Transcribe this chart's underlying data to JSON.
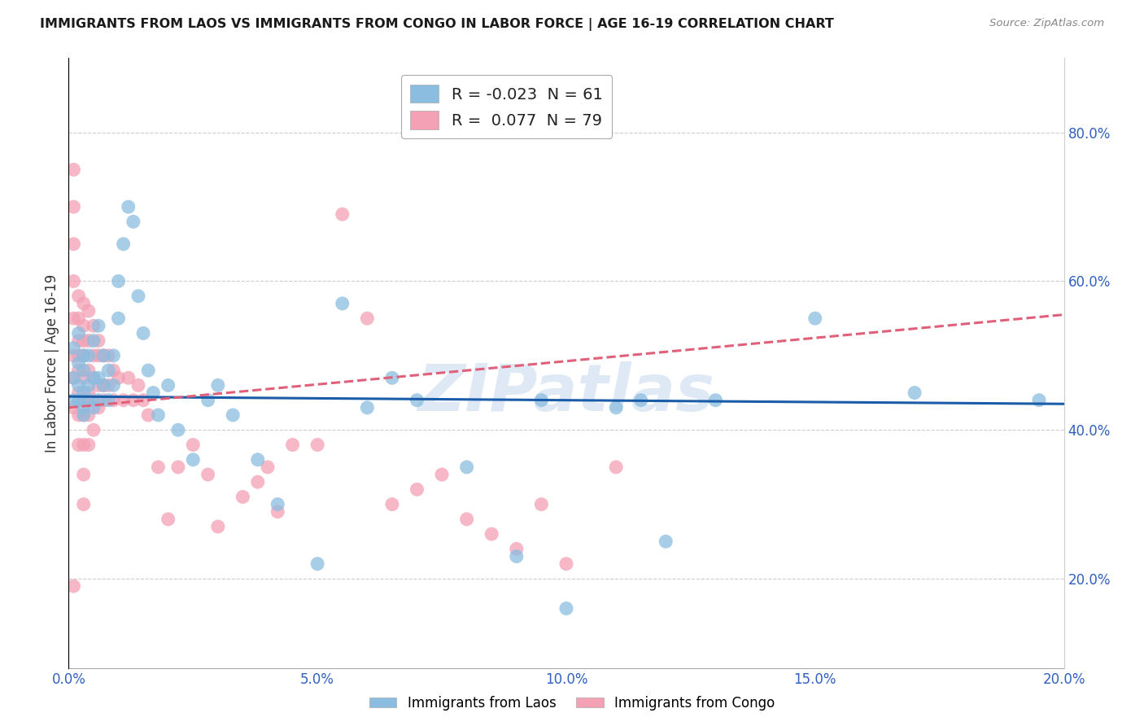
{
  "title": "IMMIGRANTS FROM LAOS VS IMMIGRANTS FROM CONGO IN LABOR FORCE | AGE 16-19 CORRELATION CHART",
  "source": "Source: ZipAtlas.com",
  "ylabel": "In Labor Force | Age 16-19",
  "xlim": [
    0.0,
    0.2
  ],
  "ylim": [
    0.08,
    0.9
  ],
  "right_yticks": [
    0.2,
    0.4,
    0.6,
    0.8
  ],
  "right_yticklabels": [
    "20.0%",
    "40.0%",
    "60.0%",
    "80.0%"
  ],
  "xticks": [
    0.0,
    0.05,
    0.1,
    0.15,
    0.2
  ],
  "xticklabels": [
    "0.0%",
    "5.0%",
    "10.0%",
    "15.0%",
    "20.0%"
  ],
  "laos_R": -0.023,
  "laos_N": 61,
  "congo_R": 0.077,
  "congo_N": 79,
  "laos_color": "#8bbde0",
  "congo_color": "#f4a0b5",
  "laos_line_color": "#1a5ca8",
  "congo_line_color": "#e0607a",
  "watermark": "ZIPatlas",
  "laos_line_y0": 0.445,
  "laos_line_y1": 0.435,
  "congo_line_y0": 0.43,
  "congo_line_y1": 0.555,
  "laos_x": [
    0.001,
    0.001,
    0.001,
    0.002,
    0.002,
    0.002,
    0.002,
    0.003,
    0.003,
    0.003,
    0.003,
    0.003,
    0.004,
    0.004,
    0.004,
    0.005,
    0.005,
    0.005,
    0.006,
    0.006,
    0.006,
    0.007,
    0.007,
    0.008,
    0.008,
    0.009,
    0.009,
    0.01,
    0.01,
    0.011,
    0.012,
    0.013,
    0.014,
    0.015,
    0.016,
    0.017,
    0.018,
    0.02,
    0.022,
    0.025,
    0.028,
    0.03,
    0.033,
    0.038,
    0.042,
    0.05,
    0.055,
    0.06,
    0.065,
    0.07,
    0.08,
    0.09,
    0.095,
    0.1,
    0.11,
    0.115,
    0.12,
    0.13,
    0.15,
    0.17,
    0.195
  ],
  "laos_y": [
    0.44,
    0.47,
    0.51,
    0.44,
    0.46,
    0.49,
    0.53,
    0.43,
    0.45,
    0.48,
    0.42,
    0.5,
    0.44,
    0.46,
    0.5,
    0.43,
    0.47,
    0.52,
    0.44,
    0.47,
    0.54,
    0.46,
    0.5,
    0.44,
    0.48,
    0.46,
    0.5,
    0.55,
    0.6,
    0.65,
    0.7,
    0.68,
    0.58,
    0.53,
    0.48,
    0.45,
    0.42,
    0.46,
    0.4,
    0.36,
    0.44,
    0.46,
    0.42,
    0.36,
    0.3,
    0.22,
    0.57,
    0.43,
    0.47,
    0.44,
    0.35,
    0.23,
    0.44,
    0.16,
    0.43,
    0.44,
    0.25,
    0.44,
    0.55,
    0.45,
    0.44
  ],
  "congo_x": [
    0.001,
    0.001,
    0.001,
    0.001,
    0.001,
    0.001,
    0.001,
    0.001,
    0.001,
    0.002,
    0.002,
    0.002,
    0.002,
    0.002,
    0.002,
    0.002,
    0.002,
    0.003,
    0.003,
    0.003,
    0.003,
    0.003,
    0.003,
    0.003,
    0.003,
    0.003,
    0.003,
    0.004,
    0.004,
    0.004,
    0.004,
    0.004,
    0.004,
    0.005,
    0.005,
    0.005,
    0.005,
    0.005,
    0.006,
    0.006,
    0.006,
    0.006,
    0.007,
    0.007,
    0.007,
    0.008,
    0.008,
    0.009,
    0.009,
    0.01,
    0.011,
    0.012,
    0.013,
    0.014,
    0.015,
    0.016,
    0.018,
    0.02,
    0.022,
    0.025,
    0.028,
    0.03,
    0.035,
    0.038,
    0.04,
    0.042,
    0.045,
    0.05,
    0.055,
    0.06,
    0.065,
    0.07,
    0.075,
    0.08,
    0.085,
    0.09,
    0.095,
    0.1,
    0.11
  ],
  "congo_y": [
    0.75,
    0.7,
    0.65,
    0.6,
    0.55,
    0.5,
    0.47,
    0.43,
    0.19,
    0.58,
    0.55,
    0.52,
    0.5,
    0.48,
    0.45,
    0.42,
    0.38,
    0.57,
    0.54,
    0.52,
    0.5,
    0.47,
    0.44,
    0.42,
    0.38,
    0.34,
    0.3,
    0.56,
    0.52,
    0.48,
    0.45,
    0.42,
    0.38,
    0.54,
    0.5,
    0.47,
    0.44,
    0.4,
    0.52,
    0.5,
    0.46,
    0.43,
    0.5,
    0.46,
    0.44,
    0.5,
    0.46,
    0.48,
    0.44,
    0.47,
    0.44,
    0.47,
    0.44,
    0.46,
    0.44,
    0.42,
    0.35,
    0.28,
    0.35,
    0.38,
    0.34,
    0.27,
    0.31,
    0.33,
    0.35,
    0.29,
    0.38,
    0.38,
    0.69,
    0.55,
    0.3,
    0.32,
    0.34,
    0.28,
    0.26,
    0.24,
    0.3,
    0.22,
    0.35
  ]
}
